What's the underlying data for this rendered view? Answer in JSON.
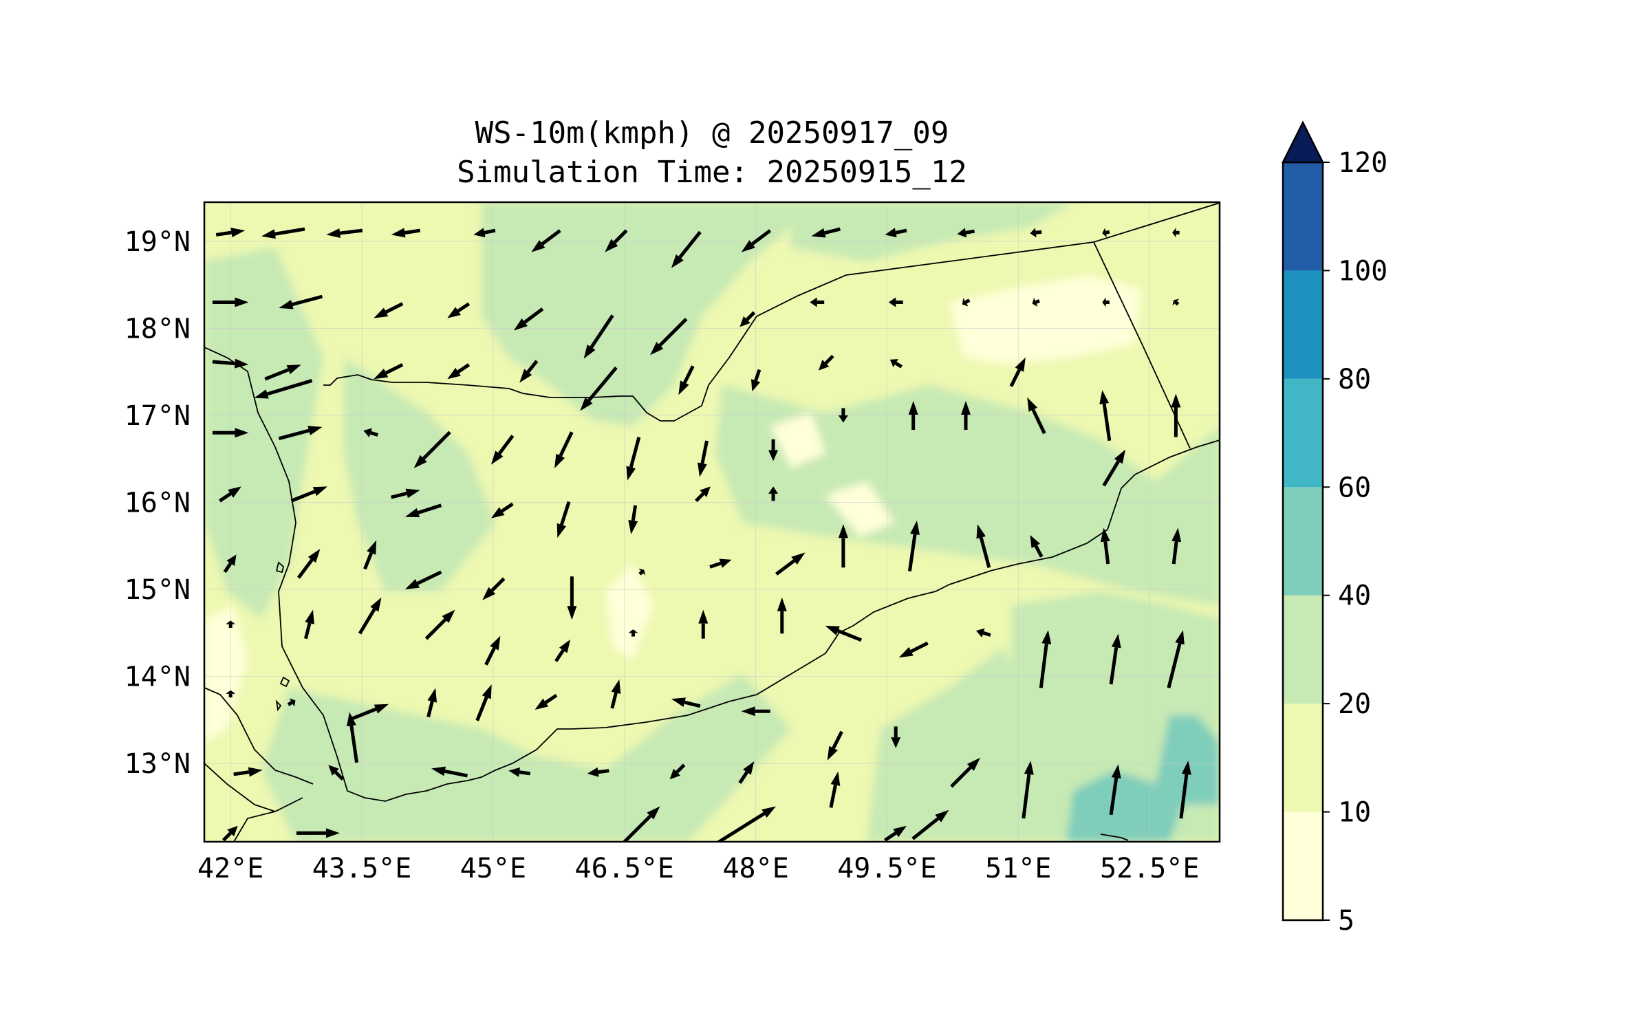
{
  "title": {
    "line1": "WS-10m(kmph) @ 20250917_09",
    "line2": "Simulation Time: 20250915_12"
  },
  "map": {
    "lon_range": [
      41.7,
      53.3
    ],
    "lat_range": [
      12.1,
      19.45
    ],
    "x_ticks": [
      {
        "value": 42,
        "label": "42°E"
      },
      {
        "value": 43.5,
        "label": "43.5°E"
      },
      {
        "value": 45,
        "label": "45°E"
      },
      {
        "value": 46.5,
        "label": "46.5°E"
      },
      {
        "value": 48,
        "label": "48°E"
      },
      {
        "value": 49.5,
        "label": "49.5°E"
      },
      {
        "value": 51,
        "label": "51°E"
      },
      {
        "value": 52.5,
        "label": "52.5°E"
      }
    ],
    "y_ticks": [
      {
        "value": 19,
        "label": "19°N"
      },
      {
        "value": 18,
        "label": "18°N"
      },
      {
        "value": 17,
        "label": "17°N"
      },
      {
        "value": 16,
        "label": "16°N"
      },
      {
        "value": 15,
        "label": "15°N"
      },
      {
        "value": 14,
        "label": "14°N"
      },
      {
        "value": 13,
        "label": "13°N"
      }
    ],
    "grid": true
  },
  "colorbar": {
    "levels": [
      5,
      10,
      20,
      40,
      60,
      80,
      100,
      120
    ],
    "labels": [
      "5",
      "10",
      "20",
      "40",
      "60",
      "80",
      "100",
      "120"
    ],
    "colors": [
      "#ffffd9",
      "#edf8b1",
      "#c7e9b4",
      "#7fcdbb",
      "#41b6c4",
      "#1d91c0",
      "#225ea8",
      "#253494"
    ],
    "extend_color": "#081d58",
    "extend": "max"
  },
  "chart_data": {
    "type": "heatmap",
    "variable": "WS-10m(kmph)",
    "valid_time": "20250917_09",
    "simulation_time": "20250915_12",
    "wind_vectors": [
      {
        "lon": 42.0,
        "lat": 19.1,
        "u": 20,
        "v": 3
      },
      {
        "lon": 42.6,
        "lat": 19.1,
        "u": -30,
        "v": -5
      },
      {
        "lon": 43.3,
        "lat": 19.1,
        "u": -25,
        "v": -3
      },
      {
        "lon": 44.0,
        "lat": 19.1,
        "u": -20,
        "v": -3
      },
      {
        "lon": 44.9,
        "lat": 19.1,
        "u": -15,
        "v": -3
      },
      {
        "lon": 45.6,
        "lat": 19.0,
        "u": -20,
        "v": -15
      },
      {
        "lon": 46.4,
        "lat": 19.0,
        "u": -15,
        "v": -15
      },
      {
        "lon": 47.2,
        "lat": 18.9,
        "u": -20,
        "v": -25
      },
      {
        "lon": 48.0,
        "lat": 19.0,
        "u": -20,
        "v": -15
      },
      {
        "lon": 48.8,
        "lat": 19.1,
        "u": -20,
        "v": -5
      },
      {
        "lon": 49.6,
        "lat": 19.1,
        "u": -15,
        "v": -3
      },
      {
        "lon": 50.4,
        "lat": 19.1,
        "u": -12,
        "v": -2
      },
      {
        "lon": 51.2,
        "lat": 19.1,
        "u": -8,
        "v": -1
      },
      {
        "lon": 52.0,
        "lat": 19.1,
        "u": -5,
        "v": -1
      },
      {
        "lon": 52.8,
        "lat": 19.1,
        "u": -5,
        "v": 0
      },
      {
        "lon": 42.0,
        "lat": 18.3,
        "u": 25,
        "v": 0
      },
      {
        "lon": 42.8,
        "lat": 18.3,
        "u": -30,
        "v": -8
      },
      {
        "lon": 43.8,
        "lat": 18.2,
        "u": -20,
        "v": -10
      },
      {
        "lon": 44.6,
        "lat": 18.2,
        "u": -15,
        "v": -10
      },
      {
        "lon": 45.4,
        "lat": 18.1,
        "u": -20,
        "v": -15
      },
      {
        "lon": 46.2,
        "lat": 17.9,
        "u": -20,
        "v": -30
      },
      {
        "lon": 47.0,
        "lat": 17.9,
        "u": -25,
        "v": -25
      },
      {
        "lon": 47.9,
        "lat": 18.1,
        "u": -10,
        "v": -10
      },
      {
        "lon": 48.7,
        "lat": 18.3,
        "u": -10,
        "v": 0
      },
      {
        "lon": 49.6,
        "lat": 18.3,
        "u": -10,
        "v": 0
      },
      {
        "lon": 50.4,
        "lat": 18.3,
        "u": -5,
        "v": -3
      },
      {
        "lon": 51.2,
        "lat": 18.3,
        "u": -5,
        "v": -2
      },
      {
        "lon": 52.0,
        "lat": 18.3,
        "u": -5,
        "v": 0
      },
      {
        "lon": 52.8,
        "lat": 18.3,
        "u": -3,
        "v": 3
      },
      {
        "lon": 42.0,
        "lat": 17.6,
        "u": 25,
        "v": -2
      },
      {
        "lon": 42.6,
        "lat": 17.5,
        "u": 25,
        "v": 10
      },
      {
        "lon": 42.6,
        "lat": 17.3,
        "u": -40,
        "v": -12
      },
      {
        "lon": 43.8,
        "lat": 17.5,
        "u": -20,
        "v": -10
      },
      {
        "lon": 44.6,
        "lat": 17.5,
        "u": -15,
        "v": -10
      },
      {
        "lon": 45.4,
        "lat": 17.5,
        "u": -12,
        "v": -15
      },
      {
        "lon": 46.2,
        "lat": 17.3,
        "u": -25,
        "v": -30
      },
      {
        "lon": 47.2,
        "lat": 17.4,
        "u": -10,
        "v": -20
      },
      {
        "lon": 48.0,
        "lat": 17.4,
        "u": -5,
        "v": -15
      },
      {
        "lon": 48.8,
        "lat": 17.6,
        "u": -10,
        "v": -10
      },
      {
        "lon": 49.6,
        "lat": 17.6,
        "u": -8,
        "v": 5
      },
      {
        "lon": 50.4,
        "lat": 17.0,
        "u": 0,
        "v": 20
      },
      {
        "lon": 51.2,
        "lat": 17.0,
        "u": -12,
        "v": 25
      },
      {
        "lon": 52.0,
        "lat": 17.0,
        "u": -5,
        "v": 35
      },
      {
        "lon": 52.8,
        "lat": 17.0,
        "u": 0,
        "v": 30
      },
      {
        "lon": 42.0,
        "lat": 16.8,
        "u": 25,
        "v": 0
      },
      {
        "lon": 42.8,
        "lat": 16.8,
        "u": 30,
        "v": 8
      },
      {
        "lon": 43.6,
        "lat": 16.8,
        "u": -10,
        "v": 3
      },
      {
        "lon": 44.3,
        "lat": 16.6,
        "u": -25,
        "v": -25
      },
      {
        "lon": 45.1,
        "lat": 16.6,
        "u": -15,
        "v": -20
      },
      {
        "lon": 45.8,
        "lat": 16.6,
        "u": -12,
        "v": -25
      },
      {
        "lon": 46.6,
        "lat": 16.5,
        "u": -8,
        "v": -30
      },
      {
        "lon": 47.4,
        "lat": 16.5,
        "u": -5,
        "v": -25
      },
      {
        "lon": 48.2,
        "lat": 16.6,
        "u": 0,
        "v": -15
      },
      {
        "lon": 49.0,
        "lat": 17.0,
        "u": 0,
        "v": -10
      },
      {
        "lon": 49.8,
        "lat": 17.0,
        "u": 0,
        "v": 20
      },
      {
        "lon": 51.0,
        "lat": 17.5,
        "u": 10,
        "v": 20
      },
      {
        "lon": 52.1,
        "lat": 16.4,
        "u": 15,
        "v": 25
      },
      {
        "lon": 42.0,
        "lat": 16.1,
        "u": 15,
        "v": 10
      },
      {
        "lon": 42.9,
        "lat": 16.1,
        "u": 25,
        "v": 10
      },
      {
        "lon": 44.0,
        "lat": 16.1,
        "u": 20,
        "v": 5
      },
      {
        "lon": 44.2,
        "lat": 15.9,
        "u": -25,
        "v": -8
      },
      {
        "lon": 45.1,
        "lat": 15.9,
        "u": -15,
        "v": -10
      },
      {
        "lon": 45.8,
        "lat": 15.8,
        "u": -8,
        "v": -25
      },
      {
        "lon": 46.6,
        "lat": 15.8,
        "u": -3,
        "v": -20
      },
      {
        "lon": 47.4,
        "lat": 16.1,
        "u": 10,
        "v": 10
      },
      {
        "lon": 48.2,
        "lat": 16.1,
        "u": 0,
        "v": 10
      },
      {
        "lon": 49.0,
        "lat": 15.5,
        "u": 0,
        "v": 30
      },
      {
        "lon": 49.8,
        "lat": 15.5,
        "u": 5,
        "v": 35
      },
      {
        "lon": 50.6,
        "lat": 15.5,
        "u": -8,
        "v": 30
      },
      {
        "lon": 51.2,
        "lat": 15.5,
        "u": -8,
        "v": 15
      },
      {
        "lon": 52.0,
        "lat": 15.5,
        "u": -3,
        "v": 25
      },
      {
        "lon": 52.8,
        "lat": 15.5,
        "u": 3,
        "v": 25
      },
      {
        "lon": 42.0,
        "lat": 15.3,
        "u": 8,
        "v": 12
      },
      {
        "lon": 42.9,
        "lat": 15.3,
        "u": 15,
        "v": 20
      },
      {
        "lon": 43.6,
        "lat": 15.4,
        "u": 8,
        "v": 20
      },
      {
        "lon": 44.2,
        "lat": 15.1,
        "u": -25,
        "v": -12
      },
      {
        "lon": 45.0,
        "lat": 15.0,
        "u": -15,
        "v": -15
      },
      {
        "lon": 45.9,
        "lat": 14.9,
        "u": 0,
        "v": -30
      },
      {
        "lon": 46.7,
        "lat": 15.2,
        "u": 3,
        "v": 3
      },
      {
        "lon": 47.6,
        "lat": 15.3,
        "u": 15,
        "v": 5
      },
      {
        "lon": 48.4,
        "lat": 15.3,
        "u": 20,
        "v": 15
      },
      {
        "lon": 42.0,
        "lat": 14.6,
        "u": 0,
        "v": 5
      },
      {
        "lon": 42.9,
        "lat": 14.6,
        "u": 5,
        "v": 20
      },
      {
        "lon": 43.6,
        "lat": 14.7,
        "u": 15,
        "v": 25
      },
      {
        "lon": 44.4,
        "lat": 14.6,
        "u": 20,
        "v": 20
      },
      {
        "lon": 45.0,
        "lat": 14.3,
        "u": 10,
        "v": 20
      },
      {
        "lon": 45.8,
        "lat": 14.3,
        "u": 10,
        "v": 15
      },
      {
        "lon": 46.6,
        "lat": 14.5,
        "u": 0,
        "v": 5
      },
      {
        "lon": 47.4,
        "lat": 14.6,
        "u": 0,
        "v": 20
      },
      {
        "lon": 48.3,
        "lat": 14.7,
        "u": 0,
        "v": 25
      },
      {
        "lon": 49.0,
        "lat": 14.5,
        "u": -25,
        "v": 10
      },
      {
        "lon": 49.8,
        "lat": 14.3,
        "u": -20,
        "v": -10
      },
      {
        "lon": 50.6,
        "lat": 14.5,
        "u": -10,
        "v": 3
      },
      {
        "lon": 51.3,
        "lat": 14.2,
        "u": 5,
        "v": 40
      },
      {
        "lon": 52.1,
        "lat": 14.2,
        "u": 5,
        "v": 35
      },
      {
        "lon": 52.8,
        "lat": 14.2,
        "u": 10,
        "v": 40
      },
      {
        "lon": 42.0,
        "lat": 13.8,
        "u": 0,
        "v": 5
      },
      {
        "lon": 42.7,
        "lat": 13.7,
        "u": 5,
        "v": 3
      },
      {
        "lon": 43.6,
        "lat": 13.6,
        "u": 25,
        "v": 10
      },
      {
        "lon": 44.3,
        "lat": 13.7,
        "u": 5,
        "v": 20
      },
      {
        "lon": 44.9,
        "lat": 13.7,
        "u": 10,
        "v": 25
      },
      {
        "lon": 45.6,
        "lat": 13.7,
        "u": -15,
        "v": -10
      },
      {
        "lon": 46.4,
        "lat": 13.8,
        "u": 5,
        "v": 20
      },
      {
        "lon": 47.2,
        "lat": 13.7,
        "u": -20,
        "v": 5
      },
      {
        "lon": 48.0,
        "lat": 13.6,
        "u": -20,
        "v": 0
      },
      {
        "lon": 48.9,
        "lat": 13.2,
        "u": -10,
        "v": -20
      },
      {
        "lon": 49.6,
        "lat": 13.3,
        "u": 0,
        "v": -15
      },
      {
        "lon": 50.4,
        "lat": 12.9,
        "u": 20,
        "v": 20
      },
      {
        "lon": 51.1,
        "lat": 12.7,
        "u": 5,
        "v": 40
      },
      {
        "lon": 52.1,
        "lat": 12.7,
        "u": 5,
        "v": 35
      },
      {
        "lon": 52.9,
        "lat": 12.7,
        "u": 5,
        "v": 40
      },
      {
        "lon": 43.4,
        "lat": 13.3,
        "u": -5,
        "v": 35
      },
      {
        "lon": 42.2,
        "lat": 12.9,
        "u": 20,
        "v": 3
      },
      {
        "lon": 43.2,
        "lat": 12.9,
        "u": -10,
        "v": 10
      },
      {
        "lon": 44.5,
        "lat": 12.9,
        "u": -25,
        "v": 5
      },
      {
        "lon": 45.3,
        "lat": 12.9,
        "u": -15,
        "v": 2
      },
      {
        "lon": 46.2,
        "lat": 12.9,
        "u": -15,
        "v": -2
      },
      {
        "lon": 47.1,
        "lat": 12.9,
        "u": -10,
        "v": -10
      },
      {
        "lon": 47.9,
        "lat": 12.9,
        "u": 10,
        "v": 15
      },
      {
        "lon": 48.9,
        "lat": 12.7,
        "u": 5,
        "v": 25
      },
      {
        "lon": 49.6,
        "lat": 12.2,
        "u": 15,
        "v": 10
      },
      {
        "lon": 42.0,
        "lat": 12.2,
        "u": 10,
        "v": 10
      },
      {
        "lon": 43.0,
        "lat": 12.2,
        "u": 30,
        "v": 0
      },
      {
        "lon": 46.7,
        "lat": 12.3,
        "u": 25,
        "v": 25
      },
      {
        "lon": 47.9,
        "lat": 12.3,
        "u": 40,
        "v": 25
      },
      {
        "lon": 50.0,
        "lat": 12.3,
        "u": 25,
        "v": 20
      }
    ]
  }
}
